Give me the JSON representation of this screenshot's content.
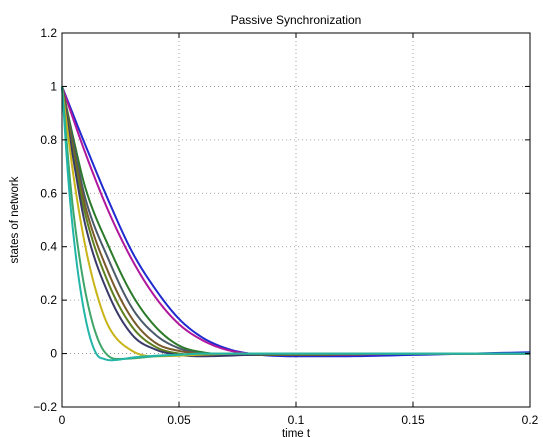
{
  "chart_data": {
    "type": "line",
    "title": "Passive Synchronization",
    "xlabel": "time t",
    "ylabel": "states of network",
    "xlim": [
      0,
      0.2
    ],
    "ylim": [
      -0.2,
      1.2
    ],
    "xticks": [
      0,
      0.05,
      0.1,
      0.15,
      0.2
    ],
    "xtick_labels": [
      "0",
      "0.05",
      "0.1",
      "0.15",
      "0.2"
    ],
    "yticks": [
      -0.2,
      0,
      0.2,
      0.4,
      0.6,
      0.8,
      1,
      1.2
    ],
    "ytick_labels": [
      "−0.2",
      "0",
      "0.2",
      "0.4",
      "0.6",
      "0.8",
      "1",
      "1.2"
    ],
    "grid": true,
    "legend": "none",
    "series": [
      {
        "color": "#1f2bd0",
        "x": [
          0,
          0.01,
          0.02,
          0.03,
          0.04,
          0.05,
          0.06,
          0.07,
          0.08,
          0.1,
          0.12,
          0.15,
          0.2
        ],
        "values": [
          1,
          0.78,
          0.57,
          0.38,
          0.24,
          0.13,
          0.06,
          0.02,
          0.0,
          -0.01,
          -0.01,
          -0.005,
          0.005
        ]
      },
      {
        "color": "#b0179c",
        "x": [
          0,
          0.01,
          0.02,
          0.03,
          0.04,
          0.05,
          0.06,
          0.07,
          0.08,
          0.1,
          0.12,
          0.15,
          0.2
        ],
        "values": [
          1,
          0.75,
          0.53,
          0.35,
          0.21,
          0.11,
          0.05,
          0.015,
          0.0,
          -0.005,
          -0.005,
          0.0,
          0.0
        ]
      },
      {
        "color": "#2a7a2a",
        "x": [
          0,
          0.005,
          0.01,
          0.02,
          0.03,
          0.04,
          0.05,
          0.06,
          0.08,
          0.1,
          0.15,
          0.2
        ],
        "values": [
          1,
          0.8,
          0.62,
          0.4,
          0.22,
          0.1,
          0.03,
          0.005,
          -0.005,
          -0.005,
          0.0,
          0.0
        ]
      },
      {
        "color": "#4a5a6a",
        "x": [
          0,
          0.005,
          0.01,
          0.02,
          0.03,
          0.04,
          0.05,
          0.06,
          0.08,
          0.1,
          0.15,
          0.2
        ],
        "values": [
          1,
          0.78,
          0.58,
          0.35,
          0.17,
          0.07,
          0.02,
          0.0,
          -0.005,
          -0.005,
          0.0,
          0.0
        ]
      },
      {
        "color": "#7a5a2a",
        "x": [
          0,
          0.005,
          0.01,
          0.02,
          0.03,
          0.04,
          0.05,
          0.06,
          0.08,
          0.1,
          0.15,
          0.2
        ],
        "values": [
          1,
          0.76,
          0.55,
          0.3,
          0.13,
          0.04,
          0.01,
          0.0,
          -0.005,
          -0.005,
          0.0,
          0.0
        ]
      },
      {
        "color": "#5e7f1e",
        "x": [
          0,
          0.005,
          0.01,
          0.02,
          0.03,
          0.04,
          0.05,
          0.06,
          0.08,
          0.1,
          0.15,
          0.2
        ],
        "values": [
          1,
          0.74,
          0.52,
          0.26,
          0.1,
          0.025,
          0.0,
          -0.005,
          -0.005,
          0.0,
          0.0,
          0.0
        ]
      },
      {
        "color": "#3a3a6a",
        "x": [
          0,
          0.005,
          0.01,
          0.02,
          0.03,
          0.04,
          0.05,
          0.06,
          0.08,
          0.1,
          0.15,
          0.2
        ],
        "values": [
          1,
          0.72,
          0.48,
          0.22,
          0.07,
          0.015,
          -0.005,
          -0.01,
          -0.005,
          0.0,
          0.0,
          0.0
        ]
      },
      {
        "color": "#c8b418",
        "x": [
          0,
          0.005,
          0.01,
          0.015,
          0.02,
          0.03,
          0.04,
          0.05,
          0.06,
          0.08,
          0.1,
          0.15,
          0.2
        ],
        "values": [
          1,
          0.66,
          0.4,
          0.22,
          0.1,
          0.01,
          -0.01,
          -0.008,
          -0.004,
          0.0,
          0.0,
          0.0,
          0.0
        ]
      },
      {
        "color": "#3fa66a",
        "x": [
          0,
          0.004,
          0.008,
          0.012,
          0.016,
          0.02,
          0.025,
          0.03,
          0.04,
          0.05,
          0.06,
          0.08,
          0.1,
          0.15,
          0.2
        ],
        "values": [
          1,
          0.6,
          0.33,
          0.15,
          0.04,
          -0.01,
          -0.02,
          -0.018,
          -0.01,
          -0.005,
          0.0,
          0.0,
          0.0,
          0.0,
          0.0
        ]
      },
      {
        "color": "#22b5a8",
        "x": [
          0,
          0.003,
          0.006,
          0.009,
          0.012,
          0.015,
          0.018,
          0.021,
          0.025,
          0.03,
          0.04,
          0.05,
          0.06,
          0.08,
          0.1,
          0.15,
          0.2
        ],
        "values": [
          1,
          0.62,
          0.36,
          0.18,
          0.06,
          -0.005,
          -0.02,
          -0.025,
          -0.022,
          -0.015,
          -0.008,
          -0.004,
          0.0,
          0.0,
          0.0,
          0.0,
          0.0
        ]
      }
    ]
  }
}
